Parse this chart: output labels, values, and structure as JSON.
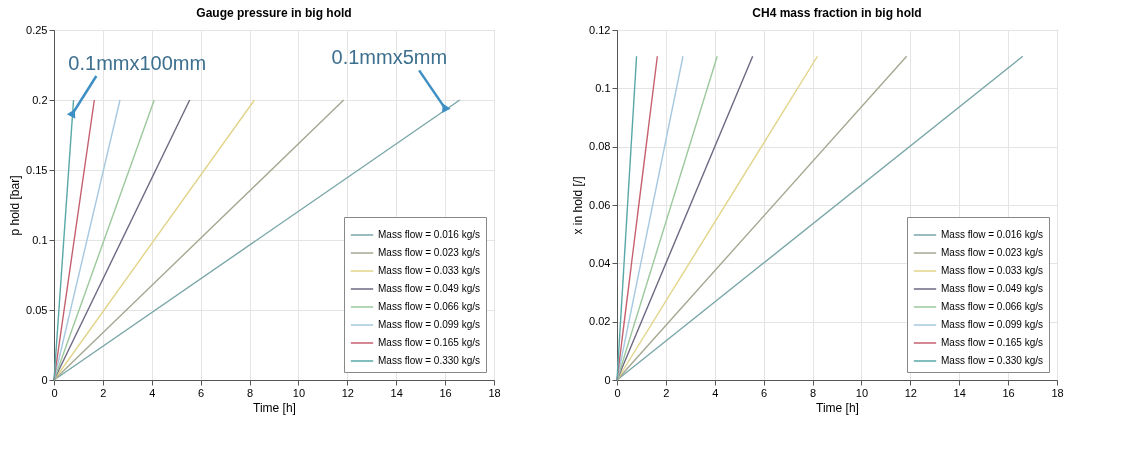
{
  "chart_data": [
    {
      "type": "line",
      "title": "Gauge pressure in big hold",
      "xlabel": "Time [h]",
      "ylabel": "p hold [bar]",
      "xlim": [
        0,
        18
      ],
      "xticks": [
        0,
        2,
        4,
        6,
        8,
        10,
        12,
        14,
        16,
        18
      ],
      "ylim": [
        0,
        0.25
      ],
      "yticks": [
        0,
        0.05,
        0.1,
        0.15,
        0.2,
        0.25
      ],
      "grid": true,
      "legend": "bottom right",
      "line_style": "solid",
      "annotations": [
        {
          "text": "0.1mmx100mm",
          "x": 0.75,
          "y": 0.19
        },
        {
          "text": "0.1mmx5mm",
          "x": 16,
          "y": 0.194
        }
      ],
      "series": [
        {
          "name": "Mass flow = 0.016 kg/s",
          "color": "#7aa6a8",
          "x": [
            0,
            16.6
          ],
          "values": [
            0,
            0.2
          ]
        },
        {
          "name": "Mass flow = 0.023 kg/s",
          "color": "#a4a890",
          "x": [
            0,
            11.85
          ],
          "values": [
            0,
            0.2
          ]
        },
        {
          "name": "Mass flow = 0.033 kg/s",
          "color": "#e2d488",
          "x": [
            0,
            8.2
          ],
          "values": [
            0,
            0.2
          ]
        },
        {
          "name": "Mass flow = 0.049 kg/s",
          "color": "#6e6882",
          "x": [
            0,
            5.55
          ],
          "values": [
            0,
            0.2
          ]
        },
        {
          "name": "Mass flow = 0.066 kg/s",
          "color": "#9cc89c",
          "x": [
            0,
            4.1
          ],
          "values": [
            0,
            0.2
          ]
        },
        {
          "name": "Mass flow = 0.099 kg/s",
          "color": "#a6c8e0",
          "x": [
            0,
            2.7
          ],
          "values": [
            0,
            0.2
          ]
        },
        {
          "name": "Mass flow = 0.165 kg/s",
          "color": "#c4606e",
          "x": [
            0,
            1.65
          ],
          "values": [
            0,
            0.2
          ]
        },
        {
          "name": "Mass flow = 0.330 kg/s",
          "color": "#58a8a8",
          "x": [
            0,
            0.8
          ],
          "values": [
            0,
            0.2
          ]
        }
      ]
    },
    {
      "type": "line",
      "title": "CH4 mass fraction in big hold",
      "xlabel": "Time [h]",
      "ylabel": "x in hold [/]",
      "xlim": [
        0,
        18
      ],
      "xticks": [
        0,
        2,
        4,
        6,
        8,
        10,
        12,
        14,
        16,
        18
      ],
      "ylim": [
        0,
        0.12
      ],
      "yticks": [
        0,
        0.02,
        0.04,
        0.06,
        0.08,
        0.1,
        0.12
      ],
      "grid": true,
      "legend": "bottom right",
      "line_style": "solid",
      "series": [
        {
          "name": "Mass flow = 0.016 kg/s",
          "color": "#7aa6a8",
          "x": [
            0,
            16.6
          ],
          "values": [
            0,
            0.111
          ]
        },
        {
          "name": "Mass flow = 0.023 kg/s",
          "color": "#a4a890",
          "x": [
            0,
            11.85
          ],
          "values": [
            0,
            0.111
          ]
        },
        {
          "name": "Mass flow = 0.033 kg/s",
          "color": "#e2d488",
          "x": [
            0,
            8.2
          ],
          "values": [
            0,
            0.111
          ]
        },
        {
          "name": "Mass flow = 0.049 kg/s",
          "color": "#6e6882",
          "x": [
            0,
            5.55
          ],
          "values": [
            0,
            0.111
          ]
        },
        {
          "name": "Mass flow = 0.066 kg/s",
          "color": "#9cc89c",
          "x": [
            0,
            4.1
          ],
          "values": [
            0,
            0.111
          ]
        },
        {
          "name": "Mass flow = 0.099 kg/s",
          "color": "#a6c8e0",
          "x": [
            0,
            2.7
          ],
          "values": [
            0,
            0.111
          ]
        },
        {
          "name": "Mass flow = 0.165 kg/s",
          "color": "#c4606e",
          "x": [
            0,
            1.65
          ],
          "values": [
            0,
            0.111
          ]
        },
        {
          "name": "Mass flow = 0.330 kg/s",
          "color": "#58a8a8",
          "x": [
            0,
            0.8
          ],
          "values": [
            0,
            0.111
          ]
        }
      ]
    }
  ]
}
